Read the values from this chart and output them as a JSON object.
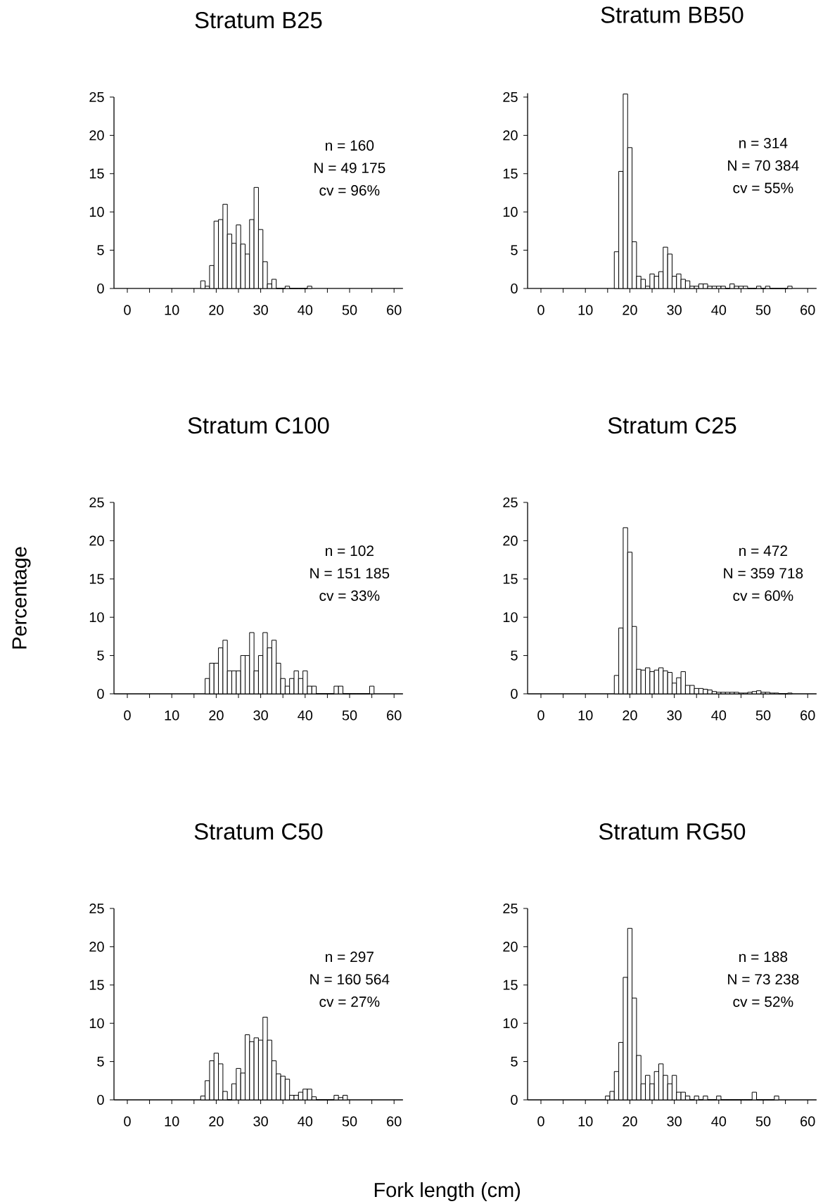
{
  "chart_data": [
    {
      "type": "histogram",
      "title": "Stratum B25",
      "color": "#ffffff",
      "xlim": [
        -3,
        62
      ],
      "ylim": [
        0,
        25
      ],
      "xticks": [
        0,
        {
          "value": 5,
          "label": null
        },
        10,
        {
          "value": 15,
          "label": null
        },
        20,
        {
          "value": 25,
          "label": null
        },
        30,
        {
          "value": 35,
          "label": null
        },
        40,
        {
          "value": 45,
          "label": null
        },
        50,
        {
          "value": 55,
          "label": null
        },
        60
      ],
      "yticks": [
        0,
        5,
        10,
        15,
        20,
        25
      ],
      "bins": [
        16.5,
        17.5,
        18.5,
        19.5,
        20.5,
        21.5,
        22.5,
        23.5,
        24.5,
        25.5,
        26.5,
        27.5,
        28.5,
        29.5,
        30.5,
        31.5,
        32.5,
        33.5,
        34.5,
        35.5,
        36.5,
        37.5,
        38.5,
        39.5,
        40.5,
        41.5
      ],
      "values": [
        1.0,
        0.3,
        3.0,
        8.8,
        9.0,
        11.0,
        7.1,
        5.9,
        8.3,
        5.8,
        4.5,
        9.0,
        13.2,
        7.7,
        3.5,
        0.6,
        1.2,
        0,
        0,
        0.3,
        0,
        0,
        0,
        0,
        0.3
      ],
      "annotations": [
        "n = 160",
        "N = 49 175",
        "cv = 96%"
      ]
    },
    {
      "type": "histogram",
      "title": "Stratum BB50",
      "color": "#ffffff",
      "xlim": [
        -3,
        62
      ],
      "ylim": [
        0,
        25.5
      ],
      "xticks": [
        0,
        {
          "value": 5,
          "label": null
        },
        10,
        {
          "value": 15,
          "label": null
        },
        20,
        {
          "value": 25,
          "label": null
        },
        30,
        {
          "value": 35,
          "label": null
        },
        40,
        {
          "value": 45,
          "label": null
        },
        50,
        {
          "value": 55,
          "label": null
        },
        60
      ],
      "yticks": [
        0,
        5,
        10,
        15,
        20,
        25
      ],
      "bins": [
        16.5,
        17.5,
        18.5,
        19.5,
        20.5,
        21.5,
        22.5,
        23.5,
        24.5,
        25.5,
        26.5,
        27.5,
        28.5,
        29.5,
        30.5,
        31.5,
        32.5,
        33.5,
        34.5,
        35.5,
        36.5,
        37.5,
        38.5,
        39.5,
        40.5,
        41.5,
        42.5,
        43.5,
        44.5,
        45.5,
        46.5,
        47.5,
        48.5,
        49.5,
        50.5,
        51.5,
        52.5,
        53.5,
        54.5,
        55.5,
        56.5
      ],
      "values": [
        4.8,
        15.3,
        25.4,
        18.4,
        6.1,
        1.6,
        1.2,
        0.3,
        1.9,
        1.6,
        2.2,
        5.4,
        4.5,
        1.6,
        1.9,
        1.2,
        1.0,
        0.3,
        0.3,
        0.6,
        0.6,
        0.3,
        0.3,
        0.3,
        0.3,
        0,
        0.6,
        0.3,
        0.3,
        0.3,
        0,
        0,
        0.3,
        0,
        0.3,
        0,
        0,
        0,
        0,
        0.3
      ],
      "annotations": [
        "n = 314",
        "N = 70 384",
        "cv = 55%"
      ]
    },
    {
      "type": "histogram",
      "title": "Stratum C100",
      "ylabel": "Percentage",
      "color": "#ffffff",
      "xlim": [
        -3,
        62
      ],
      "ylim": [
        0,
        25
      ],
      "xticks": [
        0,
        {
          "value": 5,
          "label": null
        },
        10,
        {
          "value": 15,
          "label": null
        },
        20,
        {
          "value": 25,
          "label": null
        },
        30,
        {
          "value": 35,
          "label": null
        },
        40,
        {
          "value": 45,
          "label": null
        },
        50,
        {
          "value": 55,
          "label": null
        },
        60
      ],
      "yticks": [
        0,
        5,
        10,
        15,
        20,
        25
      ],
      "bins": [
        17.5,
        18.5,
        19.5,
        20.5,
        21.5,
        22.5,
        23.5,
        24.5,
        25.5,
        26.5,
        27.5,
        28.5,
        29.5,
        30.5,
        31.5,
        32.5,
        33.5,
        34.5,
        35.5,
        36.5,
        37.5,
        38.5,
        39.5,
        40.5,
        41.5,
        42.5,
        43.5,
        44.5,
        45.5,
        46.5,
        47.5,
        48.5,
        49.5,
        50.5,
        51.5,
        52.5,
        53.5,
        54.5,
        55.5
      ],
      "values": [
        2,
        4,
        4,
        6,
        7,
        3,
        3,
        3,
        5,
        5,
        8,
        3,
        5,
        8,
        6,
        7,
        4,
        2,
        1,
        2,
        3,
        2,
        3,
        1,
        1,
        0,
        0,
        0,
        0,
        1,
        1,
        0,
        0,
        0,
        0,
        0,
        0,
        1
      ],
      "annotations": [
        "n = 102",
        "N = 151 185",
        "cv = 33%"
      ]
    },
    {
      "type": "histogram",
      "title": "Stratum C25",
      "color": "#ffffff",
      "xlim": [
        -3,
        62
      ],
      "ylim": [
        0,
        25
      ],
      "xticks": [
        0,
        {
          "value": 5,
          "label": null
        },
        10,
        {
          "value": 15,
          "label": null
        },
        20,
        {
          "value": 25,
          "label": null
        },
        30,
        {
          "value": 35,
          "label": null
        },
        40,
        {
          "value": 45,
          "label": null
        },
        50,
        {
          "value": 55,
          "label": null
        },
        60
      ],
      "yticks": [
        0,
        5,
        10,
        15,
        20,
        25
      ],
      "bins": [
        16.5,
        17.5,
        18.5,
        19.5,
        20.5,
        21.5,
        22.5,
        23.5,
        24.5,
        25.5,
        26.5,
        27.5,
        28.5,
        29.5,
        30.5,
        31.5,
        32.5,
        33.5,
        34.5,
        35.5,
        36.5,
        37.5,
        38.5,
        39.5,
        40.5,
        41.5,
        42.5,
        43.5,
        44.5,
        45.5,
        46.5,
        47.5,
        48.5,
        49.5,
        50.5,
        51.5,
        52.5,
        53.5,
        54.5,
        55.5,
        56.5
      ],
      "values": [
        2.4,
        8.6,
        21.7,
        18.5,
        8.8,
        3.2,
        3.1,
        3.4,
        2.9,
        3.1,
        3.4,
        3.0,
        2.8,
        1.4,
        2.1,
        2.9,
        1.1,
        1.1,
        0.7,
        0.7,
        0.6,
        0.5,
        0.3,
        0.2,
        0.2,
        0.2,
        0.2,
        0.2,
        0.1,
        0.1,
        0.2,
        0.3,
        0.4,
        0.2,
        0.2,
        0.1,
        0.1,
        0,
        0,
        0.1
      ],
      "annotations": [
        "n = 472",
        "N = 359 718",
        "cv = 60%"
      ]
    },
    {
      "type": "histogram",
      "title": "Stratum C50",
      "xlabel": "Fork length (cm)",
      "color": "#ffffff",
      "xlim": [
        -3,
        62
      ],
      "ylim": [
        0,
        25
      ],
      "xticks": [
        0,
        {
          "value": 5,
          "label": null
        },
        10,
        {
          "value": 15,
          "label": null
        },
        20,
        {
          "value": 25,
          "label": null
        },
        30,
        {
          "value": 35,
          "label": null
        },
        40,
        {
          "value": 45,
          "label": null
        },
        50,
        {
          "value": 55,
          "label": null
        },
        60
      ],
      "yticks": [
        0,
        5,
        10,
        15,
        20,
        25
      ],
      "bins": [
        16.5,
        17.5,
        18.5,
        19.5,
        20.5,
        21.5,
        22.5,
        23.5,
        24.5,
        25.5,
        26.5,
        27.5,
        28.5,
        29.5,
        30.5,
        31.5,
        32.5,
        33.5,
        34.5,
        35.5,
        36.5,
        37.5,
        38.5,
        39.5,
        40.5,
        41.5,
        42.5,
        43.5,
        44.5,
        45.5,
        46.5,
        47.5,
        48.5,
        49.5
      ],
      "values": [
        0.5,
        2.5,
        5.1,
        6.1,
        4.7,
        1.1,
        0,
        2.1,
        4.1,
        3.5,
        8.5,
        7.6,
        8.1,
        7.8,
        10.8,
        7.8,
        5.1,
        3.4,
        3.1,
        2.7,
        0.6,
        0.6,
        1.0,
        1.4,
        1.4,
        0.4,
        0,
        0,
        0,
        0,
        0.6,
        0.3,
        0.6
      ],
      "annotations": [
        "n = 297",
        "N = 160 564",
        "cv = 27%"
      ]
    },
    {
      "type": "histogram",
      "title": "Stratum RG50",
      "color": "#ffffff",
      "xlim": [
        -3,
        62
      ],
      "ylim": [
        0,
        25
      ],
      "xticks": [
        0,
        {
          "value": 5,
          "label": null
        },
        10,
        {
          "value": 15,
          "label": null
        },
        20,
        {
          "value": 25,
          "label": null
        },
        30,
        {
          "value": 35,
          "label": null
        },
        40,
        {
          "value": 45,
          "label": null
        },
        50,
        {
          "value": 55,
          "label": null
        },
        60
      ],
      "yticks": [
        0,
        5,
        10,
        15,
        20,
        25
      ],
      "bins": [
        14.5,
        15.5,
        16.5,
        17.5,
        18.5,
        19.5,
        20.5,
        21.5,
        22.5,
        23.5,
        24.5,
        25.5,
        26.5,
        27.5,
        28.5,
        29.5,
        30.5,
        31.5,
        32.5,
        33.5,
        34.5,
        35.5,
        36.5,
        37.5,
        38.5,
        39.5,
        40.5,
        41.5,
        42.5,
        43.5,
        44.5,
        45.5,
        46.5,
        47.5,
        48.5,
        49.5,
        50.5,
        51.5,
        52.5,
        53.5
      ],
      "values": [
        0.5,
        1.1,
        3.7,
        7.5,
        16.0,
        22.4,
        13.3,
        5.8,
        2.1,
        3.2,
        2.1,
        3.7,
        4.7,
        3.2,
        2.1,
        3.2,
        1.0,
        1.0,
        0.5,
        0,
        0.5,
        0,
        0.5,
        0,
        0,
        0.5,
        0,
        0,
        0,
        0,
        0,
        0,
        0,
        1.0,
        0,
        0,
        0,
        0,
        0.5
      ],
      "annotations": [
        "n = 188",
        "N = 73 238",
        "cv = 52%"
      ]
    }
  ]
}
